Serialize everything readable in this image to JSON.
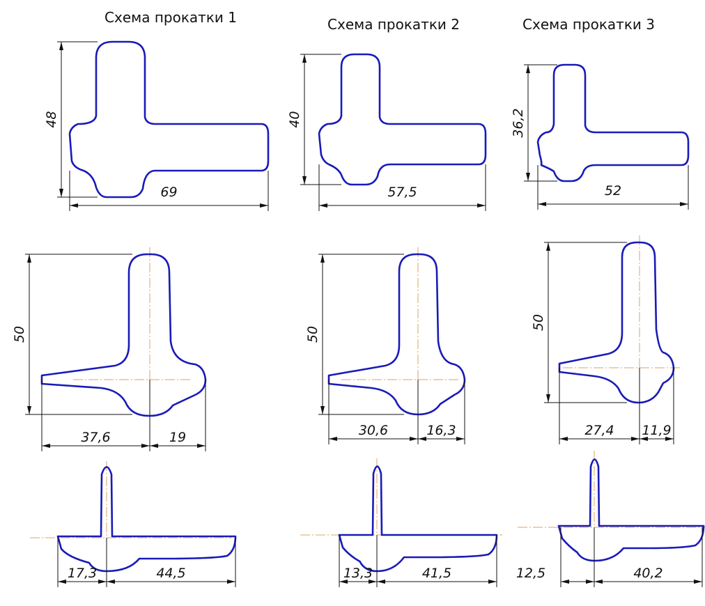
{
  "schemes": [
    {
      "title": "Схема прокатки 1",
      "stages": [
        {
          "dims": [
            "48",
            "69"
          ]
        },
        {
          "dims": [
            "50",
            "37,6",
            "19"
          ]
        },
        {
          "dims": [
            "17,3",
            "44,5"
          ]
        }
      ]
    },
    {
      "title": "Схема прокатки 2",
      "stages": [
        {
          "dims": [
            "40",
            "57,5"
          ]
        },
        {
          "dims": [
            "50",
            "30,6",
            "16,3"
          ]
        },
        {
          "dims": [
            "13,3",
            "41,5"
          ]
        }
      ]
    },
    {
      "title": "Схема прокатки 3",
      "stages": [
        {
          "dims": [
            "36,2",
            "52"
          ]
        },
        {
          "dims": [
            "50",
            "27,4",
            "11,9"
          ]
        },
        {
          "dims": [
            "12,5",
            "40,2"
          ]
        }
      ]
    }
  ]
}
